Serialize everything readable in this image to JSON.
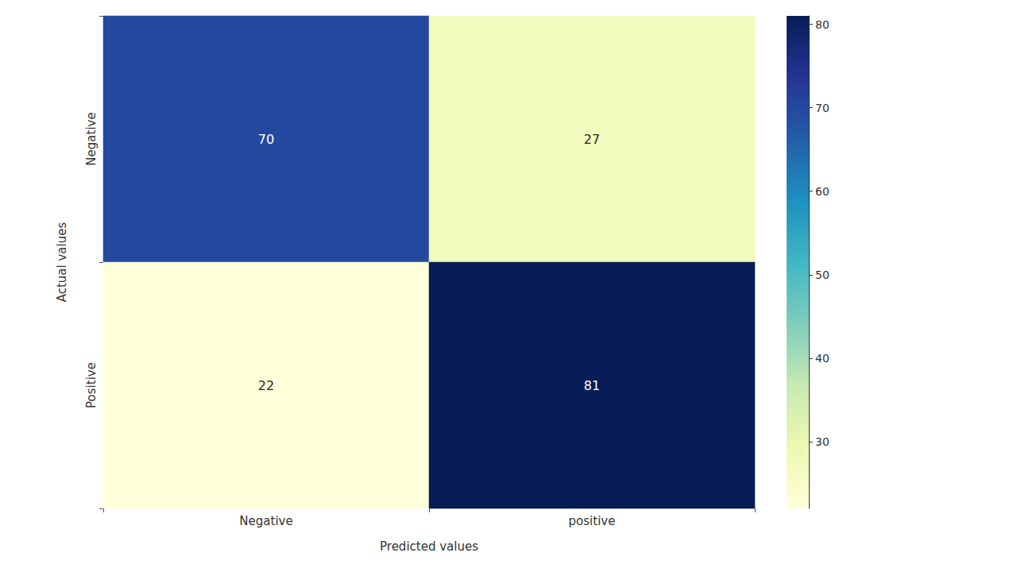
{
  "chart_data": {
    "type": "heatmap",
    "x_label": "Predicted values",
    "y_label": "Actual values",
    "x_categories": [
      "Negative",
      "positive"
    ],
    "y_categories": [
      "Negative",
      "Positive"
    ],
    "cells": [
      [
        70,
        27
      ],
      [
        22,
        81
      ]
    ],
    "data_labels": true,
    "colorbar_range": [
      22,
      81
    ],
    "colorbar_ticks": [
      30,
      40,
      50,
      60,
      70,
      80
    ]
  }
}
